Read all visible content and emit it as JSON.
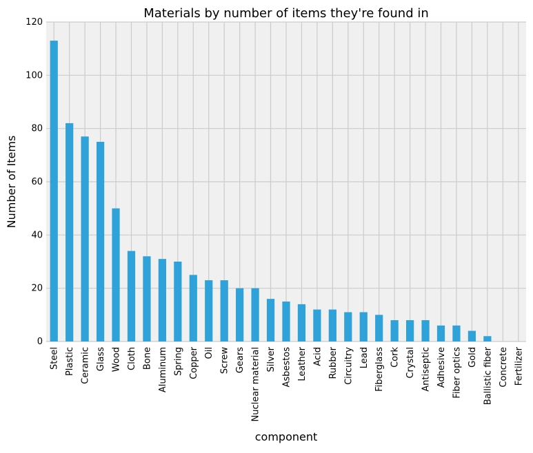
{
  "chart_data": {
    "type": "bar",
    "title": "Materials by number of items they're found in",
    "xlabel": "component",
    "ylabel": "Number of Items",
    "ylim": [
      0,
      120
    ],
    "yticks": [
      0,
      20,
      40,
      60,
      80,
      100,
      120
    ],
    "grid": true,
    "legend": "none",
    "colors": {
      "bar": "#30a2da",
      "plot_background": "#f0f0f0",
      "grid": "#cbcbcb",
      "figure_background": "#ffffff"
    },
    "categories": [
      "Steel",
      "Plastic",
      "Ceramic",
      "Glass",
      "Wood",
      "Cloth",
      "Bone",
      "Aluminum",
      "Spring",
      "Copper",
      "Oil",
      "Screw",
      "Gears",
      "Nuclear material",
      "Silver",
      "Asbestos",
      "Leather",
      "Acid",
      "Rubber",
      "Circuitry",
      "Lead",
      "Fiberglass",
      "Cork",
      "Crystal",
      "Antiseptic",
      "Adhesive",
      "Fiber optics",
      "Gold",
      "Ballistic fiber",
      "Concrete",
      "Fertilizer"
    ],
    "values": [
      113,
      82,
      77,
      75,
      50,
      34,
      32,
      31,
      30,
      25,
      23,
      23,
      20,
      20,
      16,
      15,
      14,
      12,
      12,
      11,
      11,
      10,
      8,
      8,
      8,
      6,
      6,
      4,
      2,
      0,
      0
    ]
  }
}
